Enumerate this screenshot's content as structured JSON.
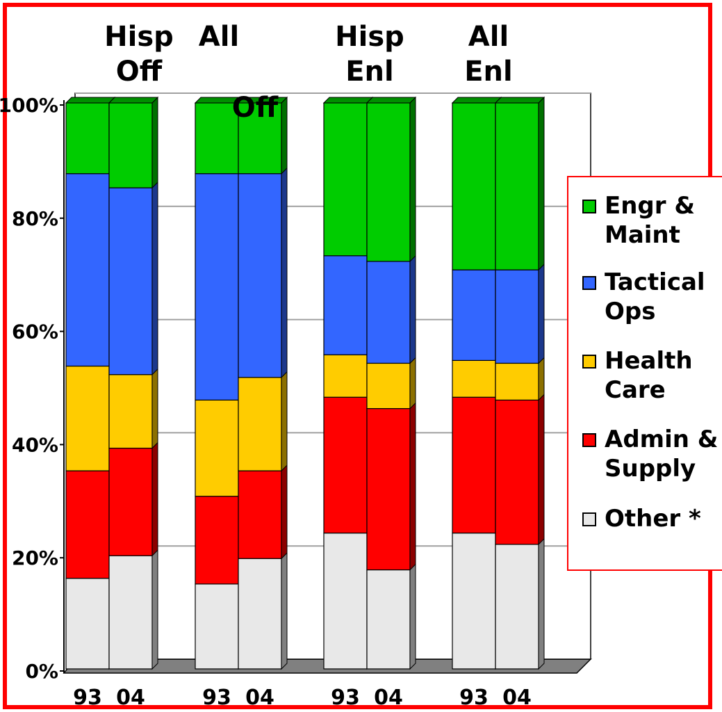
{
  "chart_data": {
    "type": "bar",
    "stacked": true,
    "percent_stacked": true,
    "groups": [
      {
        "label": "Hisp Off",
        "categories": [
          "93",
          "04"
        ]
      },
      {
        "label": "All Off",
        "categories": [
          "93",
          "04"
        ]
      },
      {
        "label": "Hisp Enl",
        "categories": [
          "93",
          "04"
        ]
      },
      {
        "label": "All Enl",
        "categories": [
          "93",
          "04"
        ]
      }
    ],
    "categories": [
      "93",
      "04",
      "93",
      "04",
      "93",
      "04",
      "93",
      "04"
    ],
    "series": [
      {
        "name": "Other *",
        "color": "#e8e8e8",
        "values": [
          16,
          20,
          15,
          19.5,
          24,
          17.5,
          24,
          22
        ]
      },
      {
        "name": "Admin & Supply",
        "color": "#ff0000",
        "values": [
          19,
          19,
          15.5,
          15.5,
          24,
          28.5,
          24,
          25.5
        ]
      },
      {
        "name": "Health Care",
        "color": "#ffcc00",
        "values": [
          18.5,
          13,
          17,
          16.5,
          7.5,
          8,
          6.5,
          6.5
        ]
      },
      {
        "name": "Tactical Ops",
        "color": "#3366ff",
        "values": [
          34,
          33,
          40,
          36,
          17.5,
          18,
          16,
          16.5
        ]
      },
      {
        "name": "Engr & Maint",
        "color": "#00cc00",
        "values": [
          12.5,
          15,
          12.5,
          12.5,
          27,
          28,
          29.5,
          29.5
        ]
      }
    ],
    "y_ticks": [
      "0%",
      "20%",
      "40%",
      "60%",
      "80%",
      "100%"
    ],
    "ylim": [
      0,
      100
    ],
    "grid": true,
    "legend_position": "right"
  }
}
